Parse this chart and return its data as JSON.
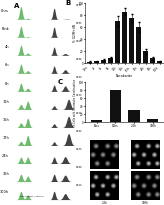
{
  "panel_A_labels": [
    "0hrs",
    "Blnk",
    "4h",
    "6h",
    "8h",
    "12h",
    "16h",
    "17h",
    "24h",
    "36h",
    "300h"
  ],
  "panel_B_categories": [
    "0hrs",
    "4h",
    "6h",
    "8h",
    "12h",
    "12h",
    "6.5h",
    "17h",
    "24h",
    "36h",
    "300h"
  ],
  "panel_B_values": [
    2,
    3,
    5,
    8,
    70,
    85,
    75,
    60,
    20,
    8,
    3
  ],
  "panel_B_ylabel": "% G2/M+4N",
  "panel_B_xlabel": "Nocodazole",
  "panel_B_title": "B",
  "panel_C_categories": [
    "0hrs",
    "12hs",
    "2.5h",
    "300h"
  ],
  "panel_C_values": [
    5,
    80,
    30,
    8
  ],
  "panel_C_ylabel": "% Cells with Chromatin Condensation",
  "panel_C_title": "C",
  "background_color": "#ffffff",
  "bar_color": "#111111",
  "flow_green": "#4aaa4a",
  "flow_dark": "#333333"
}
